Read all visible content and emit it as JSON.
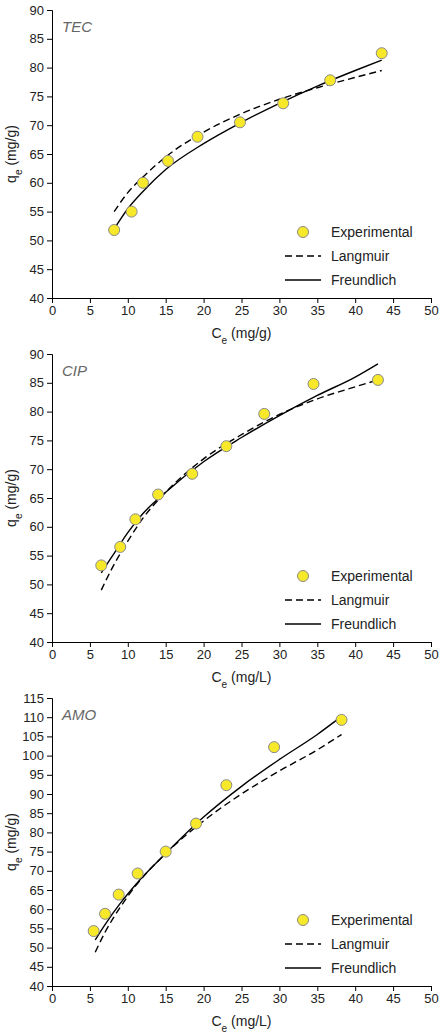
{
  "chart_data": [
    {
      "type": "scatter",
      "annotation": "TEC",
      "x_label": "Ce (mg/g)",
      "y_label": "qe (mg/g)",
      "xlim": [
        0,
        50
      ],
      "xticks": [
        0,
        5,
        10,
        15,
        20,
        25,
        30,
        35,
        40,
        45,
        50
      ],
      "ylim": [
        40,
        90
      ],
      "yticks": [
        40,
        45,
        50,
        55,
        60,
        65,
        70,
        75,
        80,
        85,
        90
      ],
      "legend": "lower right",
      "series": [
        {
          "name": "Experimental",
          "type": "scatter",
          "marker": "circle",
          "color": "#f7e92a",
          "x": [
            8.2,
            10.5,
            12,
            15.3,
            19.2,
            24.8,
            30.5,
            36.7,
            43.5
          ],
          "values": [
            51.8,
            55,
            60,
            63.8,
            68,
            70.5,
            73.8,
            77.8,
            82.5
          ]
        },
        {
          "name": "Langmuir",
          "type": "line",
          "line_style": "dashed",
          "color": "#000000",
          "x": [
            8.2,
            10,
            12,
            15,
            20,
            25,
            30,
            35,
            40,
            43.5
          ],
          "values": [
            55,
            58.3,
            61,
            64.5,
            68.8,
            72,
            74.5,
            76.5,
            78.3,
            79.5
          ]
        },
        {
          "name": "Freundlich",
          "type": "line",
          "line_style": "solid",
          "color": "#000000",
          "x": [
            8.2,
            10,
            12,
            15,
            20,
            25,
            30,
            35,
            40,
            43.5
          ],
          "values": [
            52,
            55.5,
            58.5,
            62.3,
            66.8,
            70.5,
            73.8,
            76.8,
            79.5,
            81.3
          ]
        }
      ]
    },
    {
      "type": "scatter",
      "annotation": "CIP",
      "x_label": "Ce (mg/L)",
      "y_label": "qe (mg/g)",
      "xlim": [
        0,
        50
      ],
      "xticks": [
        0,
        5,
        10,
        15,
        20,
        25,
        30,
        35,
        40,
        45,
        50
      ],
      "ylim": [
        40,
        90
      ],
      "yticks": [
        40,
        45,
        50,
        55,
        60,
        65,
        70,
        75,
        80,
        85,
        90
      ],
      "legend": "lower right",
      "series": [
        {
          "name": "Experimental",
          "type": "scatter",
          "marker": "circle",
          "color": "#f7e92a",
          "x": [
            6.5,
            9,
            11,
            14,
            18.5,
            23,
            28,
            34.5,
            43
          ],
          "values": [
            53.3,
            56.5,
            61.3,
            65.6,
            69.2,
            74,
            79.6,
            84.8,
            85.5
          ]
        },
        {
          "name": "Langmuir",
          "type": "line",
          "line_style": "dashed",
          "color": "#000000",
          "x": [
            6.5,
            8,
            10,
            12,
            15,
            20,
            25,
            30,
            35,
            40,
            43
          ],
          "values": [
            49,
            53,
            57.5,
            61.5,
            66,
            71.8,
            76,
            79.5,
            82.2,
            84.3,
            85.5
          ]
        },
        {
          "name": "Freundlich",
          "type": "line",
          "line_style": "solid",
          "color": "#000000",
          "x": [
            6.5,
            8,
            10,
            12,
            15,
            20,
            25,
            30,
            35,
            40,
            43
          ],
          "values": [
            52,
            55,
            59,
            62.3,
            66,
            71.3,
            75.5,
            79.3,
            82.8,
            86,
            88.3
          ]
        }
      ]
    },
    {
      "type": "scatter",
      "annotation": "AMO",
      "x_label": "Ce (mg/L)",
      "y_label": "qe (mg/g)",
      "xlim": [
        0,
        50
      ],
      "xticks": [
        0,
        5,
        10,
        15,
        20,
        25,
        30,
        35,
        40,
        45,
        50
      ],
      "ylim": [
        40,
        115
      ],
      "yticks": [
        40,
        45,
        50,
        55,
        60,
        65,
        70,
        75,
        80,
        85,
        90,
        95,
        100,
        105,
        110,
        115
      ],
      "legend": "lower right",
      "series": [
        {
          "name": "Experimental",
          "type": "scatter",
          "marker": "circle",
          "color": "#f7e92a",
          "x": [
            5.5,
            7,
            8.8,
            11.3,
            15,
            19,
            23,
            29.3,
            38.2
          ],
          "values": [
            54.3,
            58.8,
            63.8,
            69.3,
            75,
            82.3,
            92.3,
            102.2,
            109.3
          ]
        },
        {
          "name": "Langmuir",
          "type": "line",
          "line_style": "dashed",
          "color": "#000000",
          "x": [
            5.7,
            7,
            9,
            11,
            15,
            20,
            25,
            30,
            35,
            38.2
          ],
          "values": [
            48.8,
            54,
            60.5,
            66,
            74.5,
            83,
            90,
            96,
            101.5,
            105.5
          ]
        },
        {
          "name": "Freundlich",
          "type": "line",
          "line_style": "solid",
          "color": "#000000",
          "x": [
            5.7,
            7,
            9,
            11,
            15,
            20,
            25,
            30,
            35,
            38.2
          ],
          "values": [
            52,
            56,
            61.5,
            66.3,
            74.5,
            84,
            92,
            99,
            105.5,
            110.2
          ]
        }
      ]
    }
  ]
}
